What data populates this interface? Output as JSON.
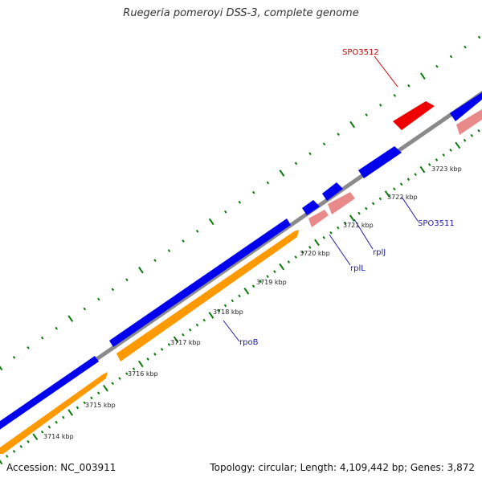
{
  "title": "Ruegeria pomeroyi DSS-3, complete genome",
  "footer": {
    "accession": "Accession: NC_003911",
    "stats": "Topology: circular; Length: 4,109,442 bp; Genes: 3,872"
  },
  "colors": {
    "backbone": "#8a8a8a",
    "gene_forward": "#0000ee",
    "gene_reverse": "#ff9900",
    "gene_highlight": "#ee0000",
    "gene_pale": "#e88a8a",
    "tick": "#0a7a0a",
    "gene_label": "#1a1aaa",
    "highlight_label": "#cc0000"
  },
  "ticks": [
    {
      "label": "3714 kbp"
    },
    {
      "label": "3715 kbp"
    },
    {
      "label": "3716 kbp"
    },
    {
      "label": "3717 kbp"
    },
    {
      "label": "3718 kbp"
    },
    {
      "label": "3719 kbp"
    },
    {
      "label": "3720 kbp"
    },
    {
      "label": "3721 kbp"
    },
    {
      "label": "3722 kbp"
    },
    {
      "label": "3723 kbp"
    }
  ],
  "gene_labels": [
    {
      "text": "rpoB"
    },
    {
      "text": "rplL"
    },
    {
      "text": "rplJ"
    },
    {
      "text": "SPO3511"
    },
    {
      "text": "SPO3512"
    }
  ]
}
